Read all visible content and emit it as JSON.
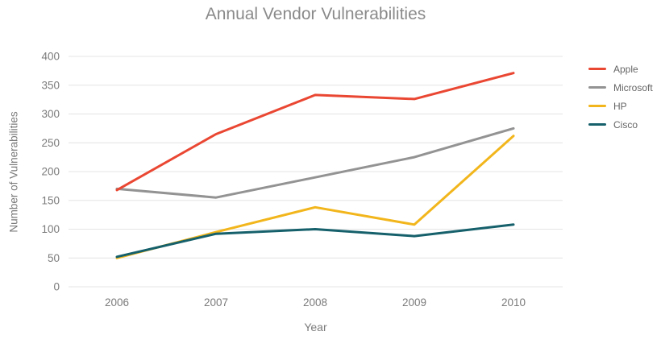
{
  "chart_data": {
    "type": "line",
    "title": "Annual Vendor Vulnerabilities",
    "xlabel": "Year",
    "ylabel": "Number of Vulnerabilities",
    "x": [
      "2006",
      "2007",
      "2008",
      "2009",
      "2010"
    ],
    "series": [
      {
        "name": "Apple",
        "color": "#ea4733",
        "values": [
          168,
          265,
          333,
          326,
          371
        ]
      },
      {
        "name": "Microsoft",
        "color": "#939393",
        "values": [
          170,
          155,
          190,
          225,
          275
        ]
      },
      {
        "name": "HP",
        "color": "#f2b61c",
        "values": [
          50,
          95,
          138,
          108,
          262
        ]
      },
      {
        "name": "Cisco",
        "color": "#15606b",
        "values": [
          52,
          92,
          100,
          88,
          108
        ]
      }
    ],
    "ylim": [
      0,
      400
    ],
    "yticks": [
      0,
      50,
      100,
      150,
      200,
      250,
      300,
      350,
      400
    ],
    "grid": "horizontal",
    "legend_position": "right"
  },
  "colors": {
    "background": "#ffffff",
    "gridline": "#e4e4e4",
    "title_text": "#8a8a8a",
    "axis_text": "#7b7b7b",
    "legend_text": "#666666"
  }
}
